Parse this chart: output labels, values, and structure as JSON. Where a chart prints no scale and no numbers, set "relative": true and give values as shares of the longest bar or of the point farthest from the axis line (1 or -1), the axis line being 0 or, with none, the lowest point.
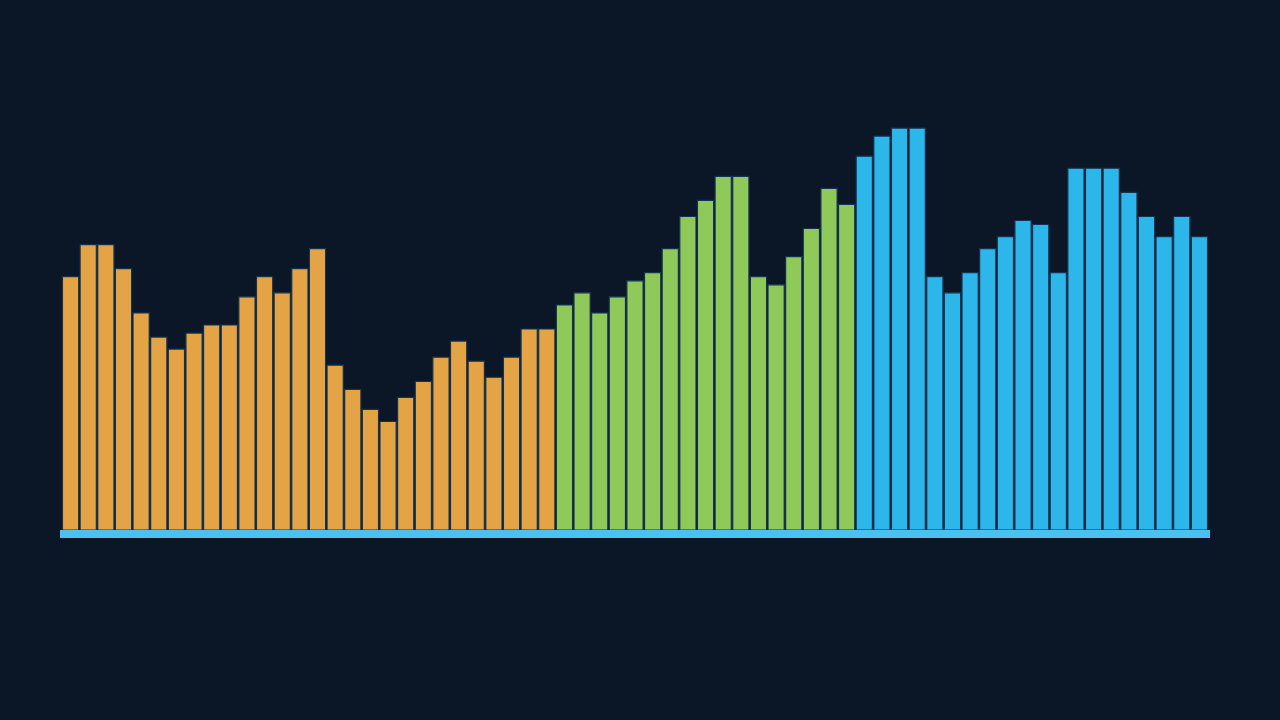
{
  "chart_data": {
    "type": "bar",
    "relative": true,
    "categories": [
      null,
      null,
      null,
      null,
      null,
      null,
      null,
      null,
      null,
      null,
      null,
      null,
      null,
      null,
      null,
      null,
      null,
      null,
      null,
      null,
      null,
      null,
      null,
      null,
      null,
      null,
      null,
      null,
      null,
      null,
      null,
      null,
      null,
      null,
      null,
      null,
      null,
      null,
      null,
      null,
      null,
      null,
      null,
      null,
      null,
      null,
      null,
      null,
      null,
      null,
      null,
      null,
      null,
      null,
      null,
      null,
      null,
      null,
      null,
      null,
      null,
      null,
      null,
      null,
      null
    ],
    "series": [
      {
        "values": [
          0.63,
          0.71,
          0.71,
          0.65,
          0.54,
          0.48,
          0.45,
          0.49,
          0.51,
          0.51,
          0.58,
          0.63,
          0.59,
          0.65,
          0.7,
          0.41,
          0.35,
          0.3,
          0.27,
          0.33,
          0.37,
          0.43,
          0.47,
          0.42,
          0.38,
          0.43,
          0.5,
          0.5,
          0.56,
          0.59,
          0.54,
          0.58,
          0.62,
          0.64,
          0.7,
          0.78,
          0.82,
          0.88,
          0.88,
          0.63,
          0.61,
          0.68,
          0.75,
          0.85,
          0.81,
          0.93,
          0.98,
          1,
          1,
          0.63,
          0.59,
          0.64,
          0.7,
          0.73,
          0.77,
          0.76,
          0.64,
          0.9,
          0.9,
          0.9,
          0.84,
          0.78,
          0.73,
          0.78,
          0.73
        ],
        "colors": [
          "#e4a446",
          "#e4a446",
          "#e4a446",
          "#e4a446",
          "#e4a446",
          "#e4a446",
          "#e4a446",
          "#e4a446",
          "#e4a446",
          "#e4a446",
          "#e4a446",
          "#e4a446",
          "#e4a446",
          "#e4a446",
          "#e4a446",
          "#e4a446",
          "#e4a446",
          "#e4a446",
          "#e4a446",
          "#e4a446",
          "#e4a446",
          "#e4a446",
          "#e4a446",
          "#e4a446",
          "#e4a446",
          "#e4a446",
          "#e4a446",
          "#e4a446",
          "#8ec95a",
          "#8ec95a",
          "#8ec95a",
          "#8ec95a",
          "#8ec95a",
          "#8ec95a",
          "#8ec95a",
          "#8ec95a",
          "#8ec95a",
          "#8ec95a",
          "#8ec95a",
          "#8ec95a",
          "#8ec95a",
          "#8ec95a",
          "#8ec95a",
          "#8ec95a",
          "#8ec95a",
          "#2cb6ea",
          "#2cb6ea",
          "#2cb6ea",
          "#2cb6ea",
          "#2cb6ea",
          "#2cb6ea",
          "#2cb6ea",
          "#2cb6ea",
          "#2cb6ea",
          "#2cb6ea",
          "#2cb6ea",
          "#2cb6ea",
          "#2cb6ea",
          "#2cb6ea",
          "#2cb6ea",
          "#2cb6ea",
          "#2cb6ea",
          "#2cb6ea",
          "#2cb6ea",
          "#2cb6ea"
        ]
      }
    ]
  }
}
